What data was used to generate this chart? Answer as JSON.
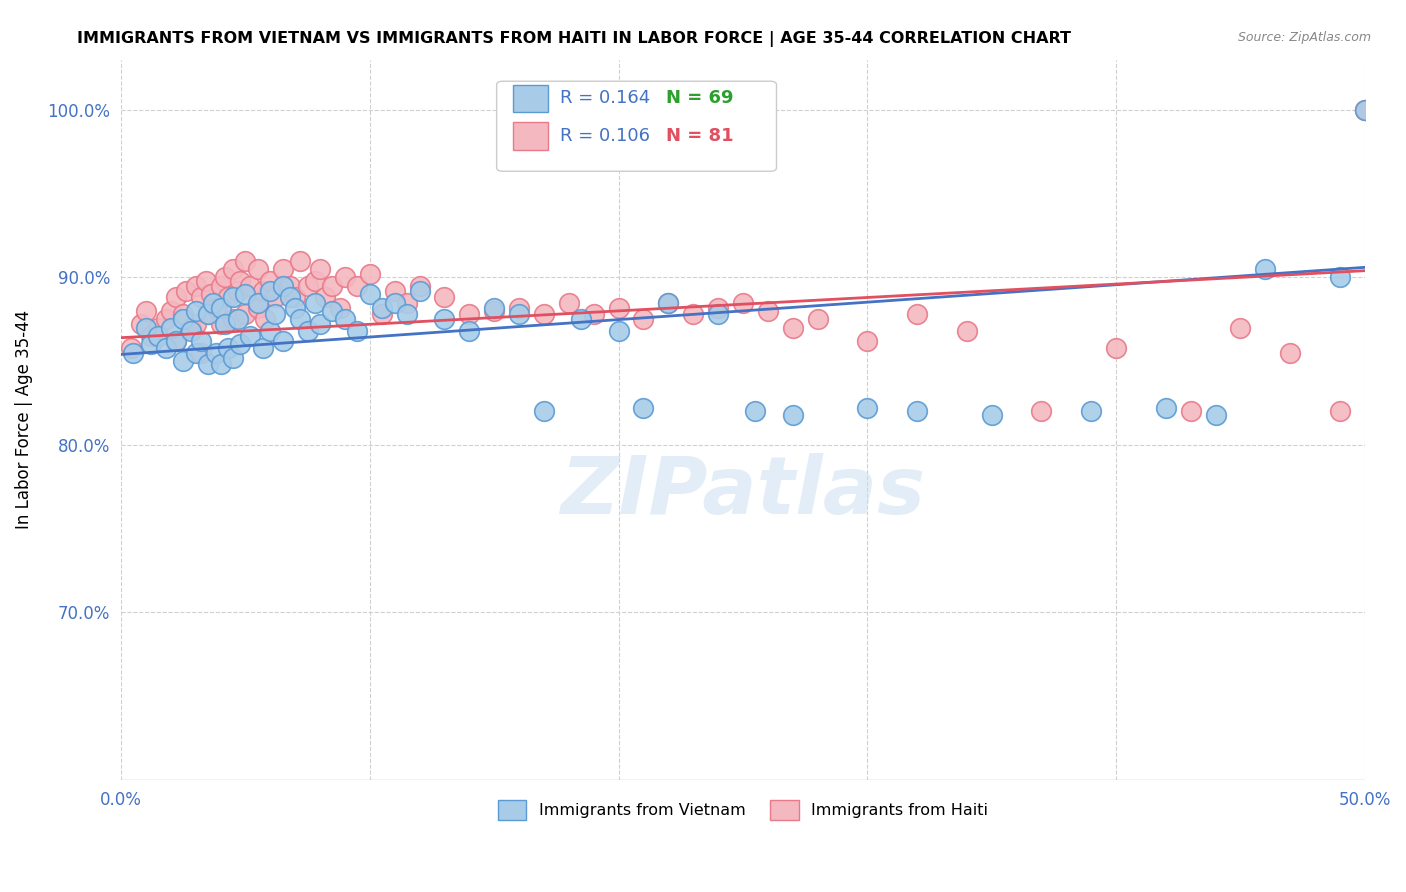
{
  "title": "IMMIGRANTS FROM VIETNAM VS IMMIGRANTS FROM HAITI IN LABOR FORCE | AGE 35-44 CORRELATION CHART",
  "source": "Source: ZipAtlas.com",
  "ylabel": "In Labor Force | Age 35-44",
  "xlim": [
    0.0,
    0.5
  ],
  "ylim": [
    0.6,
    1.03
  ],
  "yticks": [
    0.7,
    0.8,
    0.9,
    1.0
  ],
  "ytick_labels": [
    "70.0%",
    "80.0%",
    "90.0%",
    "100.0%"
  ],
  "xticks": [
    0.0,
    0.1,
    0.2,
    0.3,
    0.4,
    0.5
  ],
  "xtick_labels": [
    "0.0%",
    "",
    "",
    "",
    "",
    "50.0%"
  ],
  "watermark": "ZIPatlas",
  "blue_color": "#a8cce8",
  "pink_color": "#f4b8c0",
  "blue_edge_color": "#5b9bd5",
  "pink_edge_color": "#e87a8a",
  "blue_line_color": "#4472c4",
  "pink_line_color": "#e05060",
  "R_blue": 0.164,
  "N_blue": 69,
  "R_pink": 0.106,
  "N_pink": 81,
  "blue_scatter_x": [
    0.005,
    0.01,
    0.012,
    0.015,
    0.018,
    0.02,
    0.022,
    0.025,
    0.025,
    0.028,
    0.03,
    0.03,
    0.032,
    0.035,
    0.035,
    0.037,
    0.038,
    0.04,
    0.04,
    0.042,
    0.043,
    0.045,
    0.045,
    0.047,
    0.048,
    0.05,
    0.052,
    0.055,
    0.057,
    0.06,
    0.06,
    0.062,
    0.065,
    0.065,
    0.068,
    0.07,
    0.072,
    0.075,
    0.078,
    0.08,
    0.085,
    0.09,
    0.095,
    0.1,
    0.105,
    0.11,
    0.115,
    0.12,
    0.13,
    0.14,
    0.15,
    0.16,
    0.17,
    0.185,
    0.2,
    0.21,
    0.22,
    0.24,
    0.255,
    0.27,
    0.3,
    0.32,
    0.35,
    0.39,
    0.42,
    0.44,
    0.46,
    0.49,
    0.5
  ],
  "blue_scatter_y": [
    0.855,
    0.87,
    0.86,
    0.865,
    0.858,
    0.87,
    0.862,
    0.875,
    0.85,
    0.868,
    0.88,
    0.855,
    0.862,
    0.878,
    0.848,
    0.885,
    0.855,
    0.882,
    0.848,
    0.872,
    0.858,
    0.888,
    0.852,
    0.875,
    0.86,
    0.89,
    0.865,
    0.885,
    0.858,
    0.892,
    0.868,
    0.878,
    0.895,
    0.862,
    0.888,
    0.882,
    0.875,
    0.868,
    0.885,
    0.872,
    0.88,
    0.875,
    0.868,
    0.89,
    0.882,
    0.885,
    0.878,
    0.892,
    0.875,
    0.868,
    0.882,
    0.878,
    0.82,
    0.875,
    0.868,
    0.822,
    0.885,
    0.878,
    0.82,
    0.818,
    0.822,
    0.82,
    0.818,
    0.82,
    0.822,
    0.818,
    0.905,
    0.9,
    1.0
  ],
  "pink_scatter_x": [
    0.004,
    0.008,
    0.01,
    0.012,
    0.015,
    0.018,
    0.02,
    0.022,
    0.022,
    0.025,
    0.026,
    0.028,
    0.03,
    0.03,
    0.032,
    0.032,
    0.034,
    0.035,
    0.036,
    0.038,
    0.04,
    0.04,
    0.042,
    0.043,
    0.045,
    0.045,
    0.047,
    0.048,
    0.05,
    0.05,
    0.052,
    0.055,
    0.055,
    0.057,
    0.058,
    0.06,
    0.062,
    0.065,
    0.068,
    0.07,
    0.072,
    0.075,
    0.078,
    0.08,
    0.082,
    0.085,
    0.088,
    0.09,
    0.095,
    0.1,
    0.105,
    0.11,
    0.115,
    0.12,
    0.13,
    0.14,
    0.15,
    0.16,
    0.17,
    0.18,
    0.19,
    0.2,
    0.21,
    0.22,
    0.23,
    0.24,
    0.25,
    0.26,
    0.27,
    0.28,
    0.3,
    0.32,
    0.34,
    0.37,
    0.4,
    0.43,
    0.45,
    0.47,
    0.49,
    0.5,
    0.5
  ],
  "pink_scatter_y": [
    0.858,
    0.872,
    0.88,
    0.865,
    0.87,
    0.875,
    0.88,
    0.888,
    0.862,
    0.878,
    0.892,
    0.87,
    0.895,
    0.872,
    0.888,
    0.855,
    0.898,
    0.878,
    0.89,
    0.882,
    0.895,
    0.872,
    0.9,
    0.888,
    0.905,
    0.875,
    0.892,
    0.898,
    0.91,
    0.878,
    0.895,
    0.905,
    0.882,
    0.892,
    0.875,
    0.898,
    0.888,
    0.905,
    0.895,
    0.888,
    0.91,
    0.895,
    0.898,
    0.905,
    0.888,
    0.895,
    0.882,
    0.9,
    0.895,
    0.902,
    0.878,
    0.892,
    0.885,
    0.895,
    0.888,
    0.878,
    0.88,
    0.882,
    0.878,
    0.885,
    0.878,
    0.882,
    0.875,
    0.885,
    0.878,
    0.882,
    0.885,
    0.88,
    0.87,
    0.875,
    0.862,
    0.878,
    0.868,
    0.82,
    0.858,
    0.82,
    0.87,
    0.855,
    0.82,
    1.0,
    1.0
  ],
  "legend_R_color": "#4472c4",
  "legend_N_blue_color": "#2ca02c",
  "legend_N_pink_color": "#e05060"
}
